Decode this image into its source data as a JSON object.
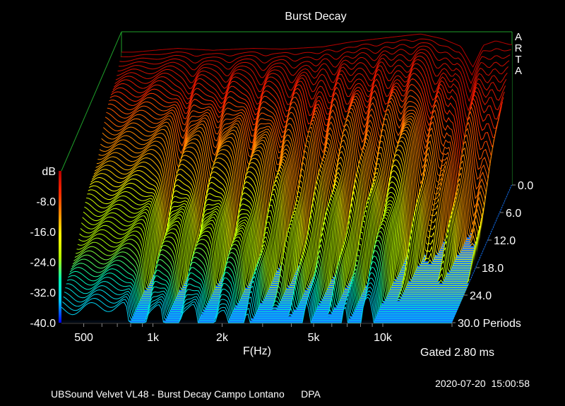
{
  "chart_data": {
    "type": "waterfall-3d",
    "title": "Burst Decay",
    "brand": "ARTA",
    "xlabel": "F(Hz)",
    "x_scale": "log",
    "xlim": [
      400,
      20000
    ],
    "x_ticks": [
      {
        "label": "500",
        "value": 500
      },
      {
        "label": "1k",
        "value": 1000
      },
      {
        "label": "2k",
        "value": 2000
      },
      {
        "label": "5k",
        "value": 5000
      },
      {
        "label": "10k",
        "value": 10000
      }
    ],
    "ylabel": "dB",
    "ylim": [
      -40,
      0
    ],
    "y_ticks": [
      "dB",
      "-8.0",
      "-16.0",
      "-24.0",
      "-32.0",
      "-40.0"
    ],
    "z_ticks": [
      "0.0",
      "6.0",
      "12.0",
      "18.0",
      "24.0",
      "30.0 Periods"
    ],
    "zlim": [
      0,
      30
    ],
    "gate_text": "Gated 2.80 ms",
    "footer_left": "UBSound Velvet VL48 - Burst Decay Campo Lontano      DPA",
    "footer_right": "2020-07-20  15:00:58",
    "colormap": [
      "#0000ff",
      "#00c8ff",
      "#00ffb4",
      "#b4ff00",
      "#ffff00",
      "#ff8c00",
      "#ff2800",
      "#b40000"
    ],
    "floor_color": "#1478ff",
    "front_response_db": [
      {
        "f": 450,
        "db": -5.0
      },
      {
        "f": 700,
        "db": -4.0
      },
      {
        "f": 1000,
        "db": -4.5
      },
      {
        "f": 1500,
        "db": -4.0
      },
      {
        "f": 2000,
        "db": -4.2
      },
      {
        "f": 3000,
        "db": -3.6
      },
      {
        "f": 4000,
        "db": -2.3
      },
      {
        "f": 5000,
        "db": -1.6
      },
      {
        "f": 6500,
        "db": -0.8
      },
      {
        "f": 8000,
        "db": -0.2
      },
      {
        "f": 10000,
        "db": -1.5
      },
      {
        "f": 12000,
        "db": -3.5
      },
      {
        "f": 13500,
        "db": -9.0
      },
      {
        "f": 15000,
        "db": -3.2
      },
      {
        "f": 17000,
        "db": -2.0
      },
      {
        "f": 19500,
        "db": -3.0
      }
    ]
  }
}
